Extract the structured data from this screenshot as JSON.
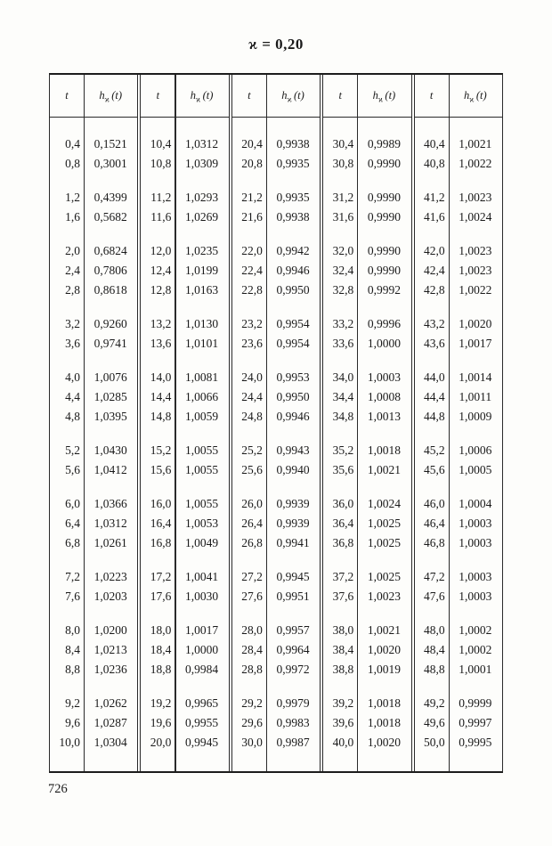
{
  "title": "ϰ = 0,20",
  "page_number": "726",
  "colors": {
    "ink": "#1a1a1a",
    "paper": "#fdfdfb"
  },
  "table": {
    "header": {
      "t": "t",
      "h_base": "h",
      "h_sub": "ϰ",
      "h_arg": "(t)"
    },
    "block_sizes": [
      2,
      2,
      3,
      2,
      3,
      2,
      3,
      2,
      3,
      3
    ],
    "groups": [
      {
        "rows": [
          [
            "0,4",
            "0,1521"
          ],
          [
            "0,8",
            "0,3001"
          ],
          [
            "1,2",
            "0,4399"
          ],
          [
            "1,6",
            "0,5682"
          ],
          [
            "2,0",
            "0,6824"
          ],
          [
            "2,4",
            "0,7806"
          ],
          [
            "2,8",
            "0,8618"
          ],
          [
            "3,2",
            "0,9260"
          ],
          [
            "3,6",
            "0,9741"
          ],
          [
            "4,0",
            "1,0076"
          ],
          [
            "4,4",
            "1,0285"
          ],
          [
            "4,8",
            "1,0395"
          ],
          [
            "5,2",
            "1,0430"
          ],
          [
            "5,6",
            "1,0412"
          ],
          [
            "6,0",
            "1,0366"
          ],
          [
            "6,4",
            "1,0312"
          ],
          [
            "6,8",
            "1,0261"
          ],
          [
            "7,2",
            "1,0223"
          ],
          [
            "7,6",
            "1,0203"
          ],
          [
            "8,0",
            "1,0200"
          ],
          [
            "8,4",
            "1,0213"
          ],
          [
            "8,8",
            "1,0236"
          ],
          [
            "9,2",
            "1,0262"
          ],
          [
            "9,6",
            "1,0287"
          ],
          [
            "10,0",
            "1,0304"
          ]
        ]
      },
      {
        "rows": [
          [
            "10,4",
            "1,0312"
          ],
          [
            "10,8",
            "1,0309"
          ],
          [
            "11,2",
            "1,0293"
          ],
          [
            "11,6",
            "1,0269"
          ],
          [
            "12,0",
            "1,0235"
          ],
          [
            "12,4",
            "1,0199"
          ],
          [
            "12,8",
            "1,0163"
          ],
          [
            "13,2",
            "1,0130"
          ],
          [
            "13,6",
            "1,0101"
          ],
          [
            "14,0",
            "1,0081"
          ],
          [
            "14,4",
            "1,0066"
          ],
          [
            "14,8",
            "1,0059"
          ],
          [
            "15,2",
            "1,0055"
          ],
          [
            "15,6",
            "1,0055"
          ],
          [
            "16,0",
            "1,0055"
          ],
          [
            "16,4",
            "1,0053"
          ],
          [
            "16,8",
            "1,0049"
          ],
          [
            "17,2",
            "1,0041"
          ],
          [
            "17,6",
            "1,0030"
          ],
          [
            "18,0",
            "1,0017"
          ],
          [
            "18,4",
            "1,0000"
          ],
          [
            "18,8",
            "0,9984"
          ],
          [
            "19,2",
            "0,9965"
          ],
          [
            "19,6",
            "0,9955"
          ],
          [
            "20,0",
            "0,9945"
          ]
        ]
      },
      {
        "rows": [
          [
            "20,4",
            "0,9938"
          ],
          [
            "20,8",
            "0,9935"
          ],
          [
            "21,2",
            "0,9935"
          ],
          [
            "21,6",
            "0,9938"
          ],
          [
            "22,0",
            "0,9942"
          ],
          [
            "22,4",
            "0,9946"
          ],
          [
            "22,8",
            "0,9950"
          ],
          [
            "23,2",
            "0,9954"
          ],
          [
            "23,6",
            "0,9954"
          ],
          [
            "24,0",
            "0,9953"
          ],
          [
            "24,4",
            "0,9950"
          ],
          [
            "24,8",
            "0,9946"
          ],
          [
            "25,2",
            "0,9943"
          ],
          [
            "25,6",
            "0,9940"
          ],
          [
            "26,0",
            "0,9939"
          ],
          [
            "26,4",
            "0,9939"
          ],
          [
            "26,8",
            "0,9941"
          ],
          [
            "27,2",
            "0,9945"
          ],
          [
            "27,6",
            "0,9951"
          ],
          [
            "28,0",
            "0,9957"
          ],
          [
            "28,4",
            "0,9964"
          ],
          [
            "28,8",
            "0,9972"
          ],
          [
            "29,2",
            "0,9979"
          ],
          [
            "29,6",
            "0,9983"
          ],
          [
            "30,0",
            "0,9987"
          ]
        ]
      },
      {
        "rows": [
          [
            "30,4",
            "0,9989"
          ],
          [
            "30,8",
            "0,9990"
          ],
          [
            "31,2",
            "0,9990"
          ],
          [
            "31,6",
            "0,9990"
          ],
          [
            "32,0",
            "0,9990"
          ],
          [
            "32,4",
            "0,9990"
          ],
          [
            "32,8",
            "0,9992"
          ],
          [
            "33,2",
            "0,9996"
          ],
          [
            "33,6",
            "1,0000"
          ],
          [
            "34,0",
            "1,0003"
          ],
          [
            "34,4",
            "1,0008"
          ],
          [
            "34,8",
            "1,0013"
          ],
          [
            "35,2",
            "1,0018"
          ],
          [
            "35,6",
            "1,0021"
          ],
          [
            "36,0",
            "1,0024"
          ],
          [
            "36,4",
            "1,0025"
          ],
          [
            "36,8",
            "1,0025"
          ],
          [
            "37,2",
            "1,0025"
          ],
          [
            "37,6",
            "1,0023"
          ],
          [
            "38,0",
            "1,0021"
          ],
          [
            "38,4",
            "1,0020"
          ],
          [
            "38,8",
            "1,0019"
          ],
          [
            "39,2",
            "1,0018"
          ],
          [
            "39,6",
            "1,0018"
          ],
          [
            "40,0",
            "1,0020"
          ]
        ]
      },
      {
        "rows": [
          [
            "40,4",
            "1,0021"
          ],
          [
            "40,8",
            "1,0022"
          ],
          [
            "41,2",
            "1,0023"
          ],
          [
            "41,6",
            "1,0024"
          ],
          [
            "42,0",
            "1,0023"
          ],
          [
            "42,4",
            "1,0023"
          ],
          [
            "42,8",
            "1,0022"
          ],
          [
            "43,2",
            "1,0020"
          ],
          [
            "43,6",
            "1,0017"
          ],
          [
            "44,0",
            "1,0014"
          ],
          [
            "44,4",
            "1,0011"
          ],
          [
            "44,8",
            "1,0009"
          ],
          [
            "45,2",
            "1,0006"
          ],
          [
            "45,6",
            "1,0005"
          ],
          [
            "46,0",
            "1,0004"
          ],
          [
            "46,4",
            "1,0003"
          ],
          [
            "46,8",
            "1,0003"
          ],
          [
            "47,2",
            "1,0003"
          ],
          [
            "47,6",
            "1,0003"
          ],
          [
            "48,0",
            "1,0002"
          ],
          [
            "48,4",
            "1,0002"
          ],
          [
            "48,8",
            "1,0001"
          ],
          [
            "49,2",
            "0,9999"
          ],
          [
            "49,6",
            "0,9997"
          ],
          [
            "50,0",
            "0,9995"
          ]
        ]
      }
    ]
  }
}
